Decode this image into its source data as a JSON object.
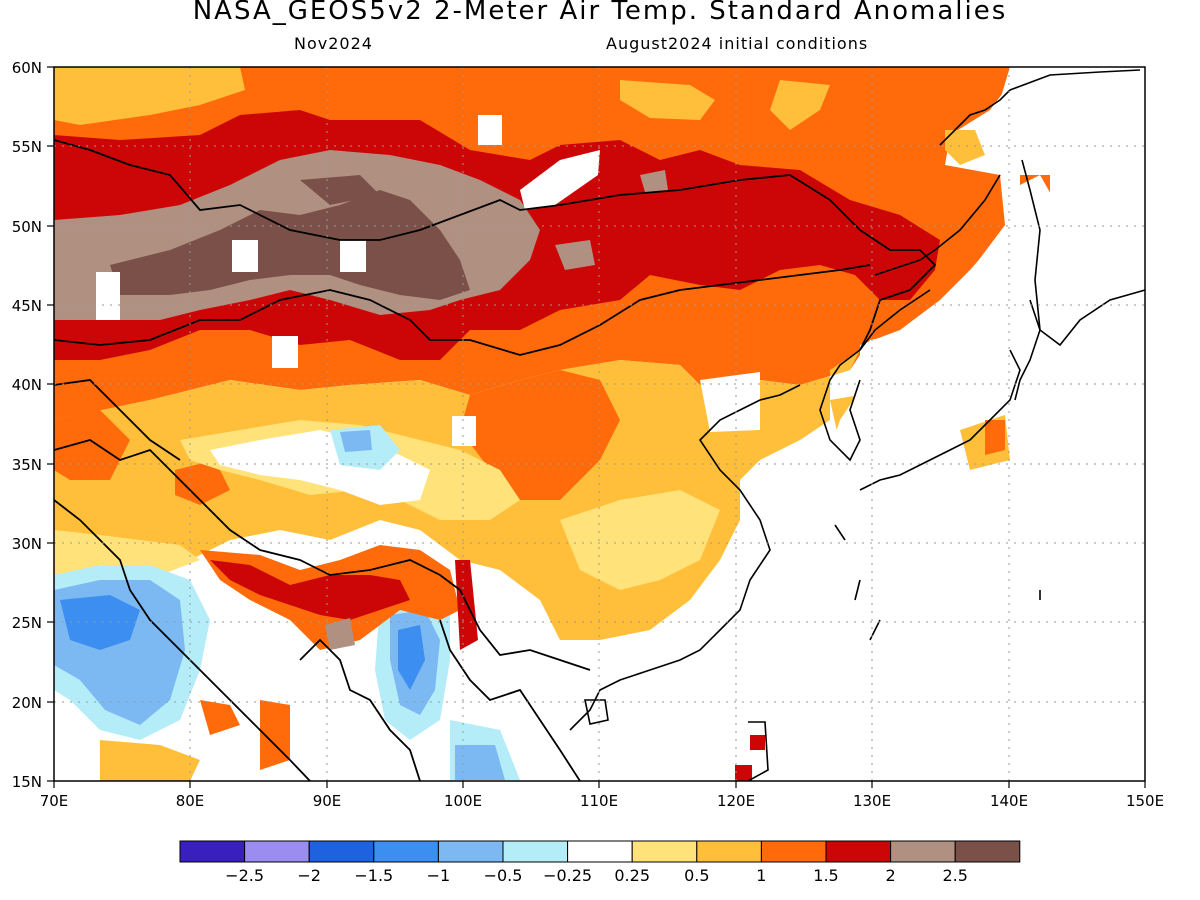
{
  "title": "NASA_GEOS5v2 2-Meter Air Temp. Standard Anomalies",
  "subtitle_left": "Nov2024",
  "subtitle_right": "August2024 initial conditions",
  "lat_labels": [
    "60N",
    "55N",
    "50N",
    "45N",
    "40N",
    "35N",
    "30N",
    "25N",
    "20N",
    "15N"
  ],
  "lon_labels": [
    "70E",
    "80E",
    "90E",
    "100E",
    "110E",
    "120E",
    "130E",
    "140E",
    "150E"
  ],
  "colorbar": {
    "colors": [
      "#3a1fbf",
      "#9b8cf0",
      "#1f62e0",
      "#3c8ef0",
      "#7cb8f2",
      "#b4ecf8",
      "#ffffff",
      "#ffe27a",
      "#ffbf3a",
      "#ff6a0a",
      "#cc0606",
      "#b09080",
      "#7a5048"
    ],
    "labels": [
      "−2.5",
      "−2",
      "−1.5",
      "−1",
      "−0.5",
      "−0.25",
      "0.25",
      "0.5",
      "1",
      "1.5",
      "2",
      "2.5"
    ]
  },
  "palette": {
    "dark_red": "#cc0606",
    "orange": "#ff6a0a",
    "light_orange": "#ffbf3a",
    "yellow": "#ffe27a",
    "taupe": "#b09080",
    "brown": "#7a5048",
    "light_blue": "#b4ecf8",
    "mid_blue": "#7cb8f2",
    "blue": "#3c8ef0"
  }
}
